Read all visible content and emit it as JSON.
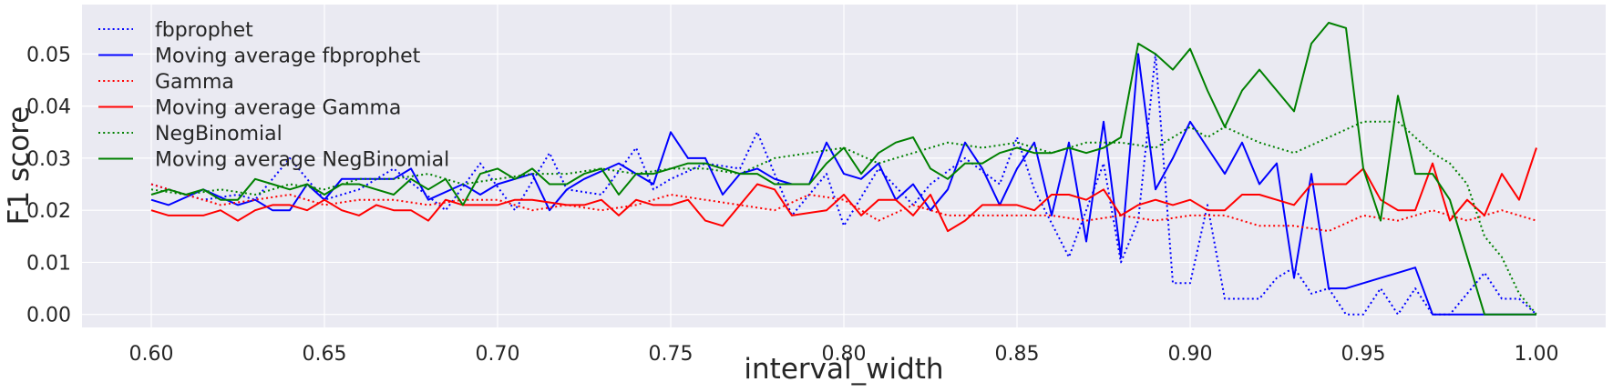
{
  "chart_data": {
    "type": "line",
    "xlabel": "interval_width",
    "ylabel": "F1 score",
    "xlim": [
      0.58,
      1.02
    ],
    "ylim": [
      -0.0025,
      0.0595
    ],
    "xticks": [
      0.6,
      0.65,
      0.7,
      0.75,
      0.8,
      0.85,
      0.9,
      0.95,
      1.0
    ],
    "xtick_labels": [
      "0.60",
      "0.65",
      "0.70",
      "0.75",
      "0.80",
      "0.85",
      "0.90",
      "0.95",
      "1.00"
    ],
    "yticks": [
      0.0,
      0.01,
      0.02,
      0.03,
      0.04,
      0.05
    ],
    "ytick_labels": [
      "0.00",
      "0.01",
      "0.02",
      "0.03",
      "0.04",
      "0.05"
    ],
    "grid": true,
    "legend_position": "upper-left",
    "background_color": "#eaeaf2",
    "series": [
      {
        "name": "fbprophet",
        "color": "#0000ff",
        "style": "dotted",
        "x": [
          0.6,
          0.615,
          0.625,
          0.63,
          0.64,
          0.65,
          0.66,
          0.67,
          0.685,
          0.695,
          0.705,
          0.715,
          0.72,
          0.73,
          0.74,
          0.745,
          0.75,
          0.76,
          0.77,
          0.775,
          0.785,
          0.795,
          0.8,
          0.81,
          0.82,
          0.825,
          0.835,
          0.845,
          0.85,
          0.855,
          0.865,
          0.875,
          0.88,
          0.885,
          0.89,
          0.895,
          0.9,
          0.905,
          0.91,
          0.92,
          0.925,
          0.93,
          0.935,
          0.94,
          0.945,
          0.95,
          0.955,
          0.96,
          0.965,
          0.97,
          0.975,
          0.985,
          0.99,
          0.995,
          1.0
        ],
        "y": [
          0.025,
          0.022,
          0.023,
          0.022,
          0.03,
          0.022,
          0.024,
          0.028,
          0.02,
          0.029,
          0.02,
          0.031,
          0.024,
          0.023,
          0.032,
          0.024,
          0.026,
          0.029,
          0.028,
          0.035,
          0.019,
          0.027,
          0.017,
          0.028,
          0.021,
          0.025,
          0.03,
          0.025,
          0.034,
          0.024,
          0.011,
          0.029,
          0.01,
          0.018,
          0.05,
          0.006,
          0.006,
          0.021,
          0.003,
          0.003,
          0.007,
          0.009,
          0.004,
          0.005,
          0.0,
          0.0,
          0.005,
          0.0,
          0.005,
          0.0,
          0.0,
          0.008,
          0.003,
          0.003,
          0.0
        ]
      },
      {
        "name": "Moving average fbprophet",
        "color": "#0000ff",
        "style": "solid",
        "x": [
          0.6,
          0.605,
          0.615,
          0.625,
          0.63,
          0.635,
          0.64,
          0.645,
          0.65,
          0.655,
          0.66,
          0.67,
          0.675,
          0.68,
          0.69,
          0.695,
          0.7,
          0.71,
          0.715,
          0.72,
          0.725,
          0.735,
          0.74,
          0.745,
          0.75,
          0.755,
          0.76,
          0.765,
          0.77,
          0.775,
          0.78,
          0.785,
          0.79,
          0.795,
          0.8,
          0.805,
          0.81,
          0.815,
          0.82,
          0.825,
          0.83,
          0.835,
          0.84,
          0.845,
          0.85,
          0.855,
          0.86,
          0.865,
          0.87,
          0.875,
          0.88,
          0.885,
          0.89,
          0.895,
          0.9,
          0.905,
          0.91,
          0.915,
          0.92,
          0.925,
          0.93,
          0.935,
          0.94,
          0.945,
          0.95,
          0.955,
          0.96,
          0.965,
          0.97,
          0.975,
          0.98,
          0.985,
          0.99,
          0.995,
          1.0
        ],
        "y": [
          0.022,
          0.021,
          0.024,
          0.021,
          0.022,
          0.02,
          0.02,
          0.025,
          0.022,
          0.026,
          0.026,
          0.026,
          0.028,
          0.022,
          0.025,
          0.023,
          0.025,
          0.027,
          0.02,
          0.024,
          0.026,
          0.029,
          0.027,
          0.025,
          0.035,
          0.03,
          0.03,
          0.023,
          0.027,
          0.028,
          0.026,
          0.025,
          0.025,
          0.033,
          0.027,
          0.026,
          0.029,
          0.022,
          0.025,
          0.02,
          0.024,
          0.033,
          0.028,
          0.021,
          0.028,
          0.033,
          0.019,
          0.033,
          0.014,
          0.037,
          0.011,
          0.05,
          0.024,
          0.03,
          0.037,
          0.032,
          0.027,
          0.033,
          0.025,
          0.029,
          0.007,
          0.027,
          0.005,
          0.005,
          0.006,
          0.007,
          0.008,
          0.009,
          0.0,
          0.0,
          0.0,
          0.0,
          0.0,
          0.0,
          0.0
        ]
      },
      {
        "name": "Gamma",
        "color": "#ff0000",
        "style": "dotted",
        "x": [
          0.6,
          0.61,
          0.62,
          0.63,
          0.64,
          0.65,
          0.66,
          0.67,
          0.68,
          0.69,
          0.7,
          0.71,
          0.72,
          0.73,
          0.74,
          0.75,
          0.76,
          0.77,
          0.78,
          0.79,
          0.8,
          0.81,
          0.82,
          0.83,
          0.84,
          0.85,
          0.86,
          0.87,
          0.88,
          0.89,
          0.9,
          0.91,
          0.92,
          0.93,
          0.94,
          0.95,
          0.96,
          0.97,
          0.98,
          0.99,
          1.0
        ],
        "y": [
          0.025,
          0.023,
          0.021,
          0.022,
          0.023,
          0.021,
          0.022,
          0.022,
          0.021,
          0.022,
          0.022,
          0.02,
          0.021,
          0.02,
          0.021,
          0.023,
          0.022,
          0.021,
          0.02,
          0.023,
          0.022,
          0.018,
          0.021,
          0.019,
          0.019,
          0.019,
          0.019,
          0.018,
          0.019,
          0.018,
          0.019,
          0.019,
          0.017,
          0.017,
          0.016,
          0.019,
          0.018,
          0.02,
          0.018,
          0.02,
          0.018
        ]
      },
      {
        "name": "Moving average Gamma",
        "color": "#ff0000",
        "style": "solid",
        "x": [
          0.6,
          0.605,
          0.615,
          0.62,
          0.625,
          0.63,
          0.635,
          0.64,
          0.645,
          0.65,
          0.655,
          0.66,
          0.665,
          0.67,
          0.675,
          0.68,
          0.685,
          0.69,
          0.7,
          0.705,
          0.71,
          0.72,
          0.725,
          0.73,
          0.735,
          0.74,
          0.745,
          0.75,
          0.755,
          0.76,
          0.765,
          0.77,
          0.775,
          0.78,
          0.785,
          0.795,
          0.8,
          0.805,
          0.81,
          0.815,
          0.82,
          0.825,
          0.83,
          0.835,
          0.84,
          0.845,
          0.85,
          0.855,
          0.86,
          0.865,
          0.87,
          0.875,
          0.88,
          0.885,
          0.89,
          0.895,
          0.9,
          0.905,
          0.91,
          0.915,
          0.92,
          0.925,
          0.93,
          0.935,
          0.94,
          0.945,
          0.95,
          0.955,
          0.96,
          0.965,
          0.97,
          0.975,
          0.98,
          0.985,
          0.99,
          0.995,
          1.0
        ],
        "y": [
          0.02,
          0.019,
          0.019,
          0.02,
          0.018,
          0.02,
          0.021,
          0.021,
          0.02,
          0.022,
          0.02,
          0.019,
          0.021,
          0.02,
          0.02,
          0.018,
          0.022,
          0.021,
          0.021,
          0.022,
          0.022,
          0.021,
          0.021,
          0.022,
          0.019,
          0.022,
          0.021,
          0.021,
          0.022,
          0.018,
          0.017,
          0.021,
          0.025,
          0.024,
          0.019,
          0.02,
          0.023,
          0.019,
          0.022,
          0.022,
          0.019,
          0.023,
          0.016,
          0.018,
          0.021,
          0.021,
          0.021,
          0.02,
          0.023,
          0.023,
          0.022,
          0.024,
          0.019,
          0.021,
          0.022,
          0.021,
          0.022,
          0.02,
          0.02,
          0.023,
          0.023,
          0.022,
          0.021,
          0.025,
          0.025,
          0.025,
          0.028,
          0.022,
          0.02,
          0.02,
          0.029,
          0.018,
          0.022,
          0.019,
          0.027,
          0.022,
          0.032
        ]
      },
      {
        "name": "NegBinomial",
        "color": "#008000",
        "style": "dotted",
        "x": [
          0.6,
          0.61,
          0.62,
          0.63,
          0.64,
          0.65,
          0.66,
          0.67,
          0.68,
          0.69,
          0.7,
          0.71,
          0.72,
          0.73,
          0.74,
          0.75,
          0.76,
          0.77,
          0.78,
          0.79,
          0.8,
          0.81,
          0.82,
          0.83,
          0.84,
          0.85,
          0.86,
          0.87,
          0.88,
          0.89,
          0.9,
          0.905,
          0.91,
          0.92,
          0.93,
          0.94,
          0.95,
          0.96,
          0.97,
          0.975,
          0.98,
          0.985,
          0.99,
          0.995,
          1.0
        ],
        "y": [
          0.024,
          0.023,
          0.024,
          0.023,
          0.025,
          0.024,
          0.026,
          0.026,
          0.027,
          0.025,
          0.026,
          0.027,
          0.027,
          0.028,
          0.027,
          0.028,
          0.028,
          0.027,
          0.03,
          0.031,
          0.032,
          0.029,
          0.031,
          0.033,
          0.032,
          0.033,
          0.031,
          0.033,
          0.033,
          0.032,
          0.036,
          0.034,
          0.036,
          0.033,
          0.031,
          0.034,
          0.037,
          0.037,
          0.031,
          0.029,
          0.025,
          0.015,
          0.011,
          0.004,
          0.0
        ]
      },
      {
        "name": "Moving average NegBinomial",
        "color": "#008000",
        "style": "solid",
        "x": [
          0.6,
          0.605,
          0.61,
          0.615,
          0.62,
          0.625,
          0.63,
          0.635,
          0.64,
          0.645,
          0.65,
          0.655,
          0.66,
          0.665,
          0.67,
          0.675,
          0.68,
          0.685,
          0.69,
          0.695,
          0.7,
          0.705,
          0.71,
          0.715,
          0.72,
          0.725,
          0.73,
          0.735,
          0.74,
          0.745,
          0.75,
          0.755,
          0.76,
          0.765,
          0.77,
          0.775,
          0.78,
          0.785,
          0.79,
          0.795,
          0.8,
          0.805,
          0.81,
          0.815,
          0.82,
          0.825,
          0.83,
          0.835,
          0.84,
          0.845,
          0.85,
          0.855,
          0.86,
          0.865,
          0.87,
          0.875,
          0.88,
          0.885,
          0.89,
          0.895,
          0.9,
          0.905,
          0.91,
          0.915,
          0.92,
          0.925,
          0.93,
          0.935,
          0.94,
          0.945,
          0.95,
          0.955,
          0.96,
          0.965,
          0.97,
          0.975,
          0.98,
          0.985,
          0.99,
          0.995,
          1.0
        ],
        "y": [
          0.023,
          0.024,
          0.023,
          0.024,
          0.022,
          0.022,
          0.026,
          0.025,
          0.024,
          0.025,
          0.023,
          0.025,
          0.025,
          0.024,
          0.023,
          0.026,
          0.024,
          0.026,
          0.021,
          0.027,
          0.028,
          0.026,
          0.028,
          0.025,
          0.025,
          0.027,
          0.028,
          0.023,
          0.027,
          0.027,
          0.028,
          0.029,
          0.029,
          0.028,
          0.027,
          0.027,
          0.025,
          0.025,
          0.025,
          0.029,
          0.032,
          0.027,
          0.031,
          0.033,
          0.034,
          0.028,
          0.026,
          0.029,
          0.029,
          0.031,
          0.032,
          0.031,
          0.031,
          0.032,
          0.031,
          0.032,
          0.034,
          0.052,
          0.05,
          0.047,
          0.051,
          0.043,
          0.036,
          0.043,
          0.047,
          0.043,
          0.039,
          0.052,
          0.056,
          0.055,
          0.028,
          0.018,
          0.042,
          0.027,
          0.027,
          0.022,
          0.011,
          0.0,
          0.0,
          0.0,
          0.0
        ]
      }
    ]
  }
}
